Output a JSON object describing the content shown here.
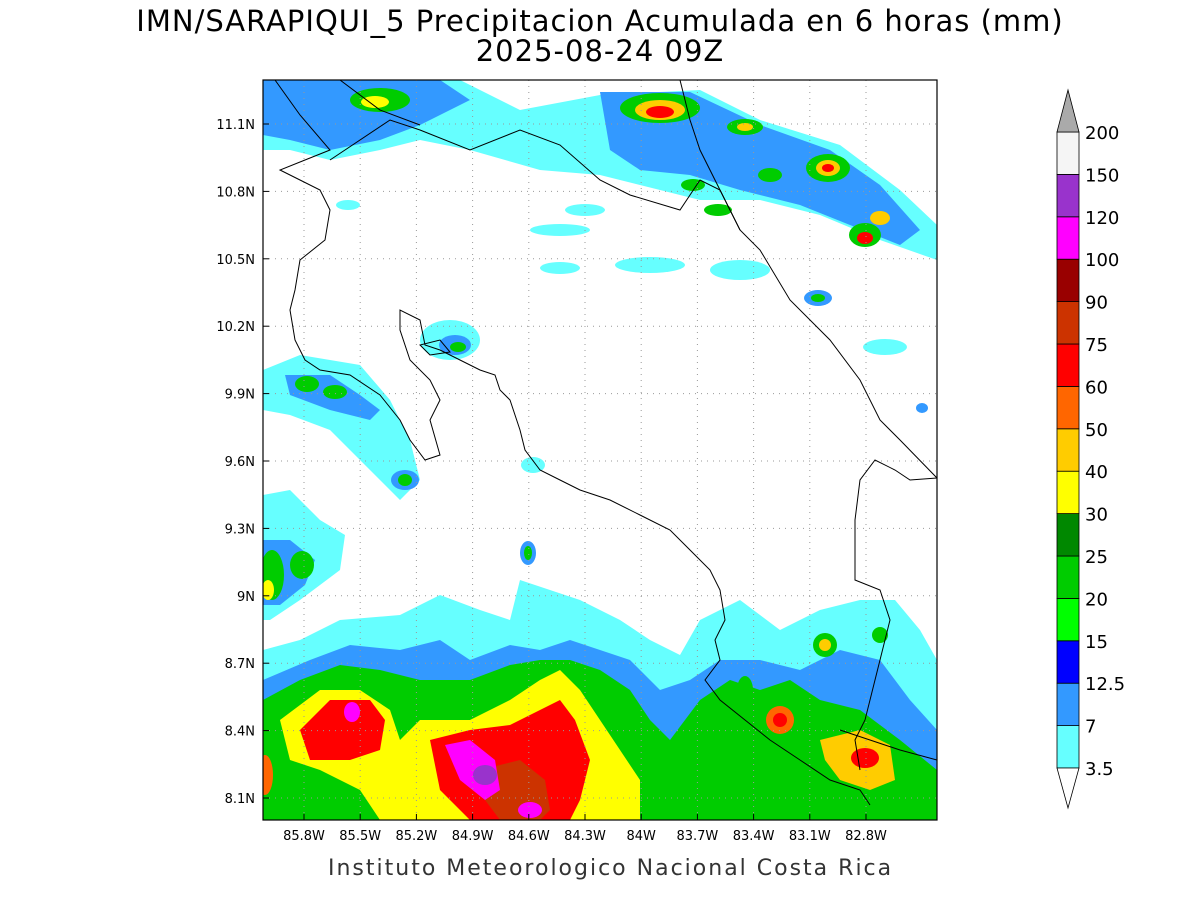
{
  "title": {
    "line1": "IMN/SARAPIQUI_5 Precipitacion Acumulada en 6 horas (mm)",
    "line2": "2025-08-24 09Z"
  },
  "footer": "Instituto Meteorologico Nacional Costa Rica",
  "axes": {
    "lon_ticks": [
      "85.8W",
      "85.5W",
      "85.2W",
      "84.9W",
      "84.6W",
      "84.3W",
      "84W",
      "83.7W",
      "83.4W",
      "83.1W",
      "82.8W"
    ],
    "lat_ticks": [
      "11.1N",
      "10.8N",
      "10.5N",
      "10.2N",
      "9.9N",
      "9.6N",
      "9.3N",
      "9N",
      "8.7N",
      "8.4N",
      "8.1N"
    ]
  },
  "colorbar": {
    "levels": [
      "3.5",
      "7",
      "12.5",
      "15",
      "20",
      "25",
      "30",
      "40",
      "50",
      "60",
      "75",
      "90",
      "100",
      "120",
      "150",
      "200"
    ],
    "colors": [
      "#ffffff",
      "#66ffff",
      "#3399ff",
      "#0000ff",
      "#00ff00",
      "#00cc00",
      "#008800",
      "#ffff00",
      "#ffcc00",
      "#ff6600",
      "#ff0000",
      "#cc3300",
      "#990000",
      "#ff00ff",
      "#9933cc",
      "#f5f5f5",
      "#aaaaaa"
    ]
  },
  "regions": {
    "colors": {
      "c35": "#66ffff",
      "c7": "#3399ff",
      "c125": "#0000ff",
      "c15": "#00ff00",
      "c20": "#00cc00",
      "c25": "#008800",
      "c30": "#ffff00",
      "c40": "#ffcc00",
      "c50": "#ff6600",
      "c60": "#ff0000",
      "c75": "#cc3300",
      "c90": "#990000",
      "c100": "#ff00ff",
      "c120": "#9933cc"
    }
  }
}
